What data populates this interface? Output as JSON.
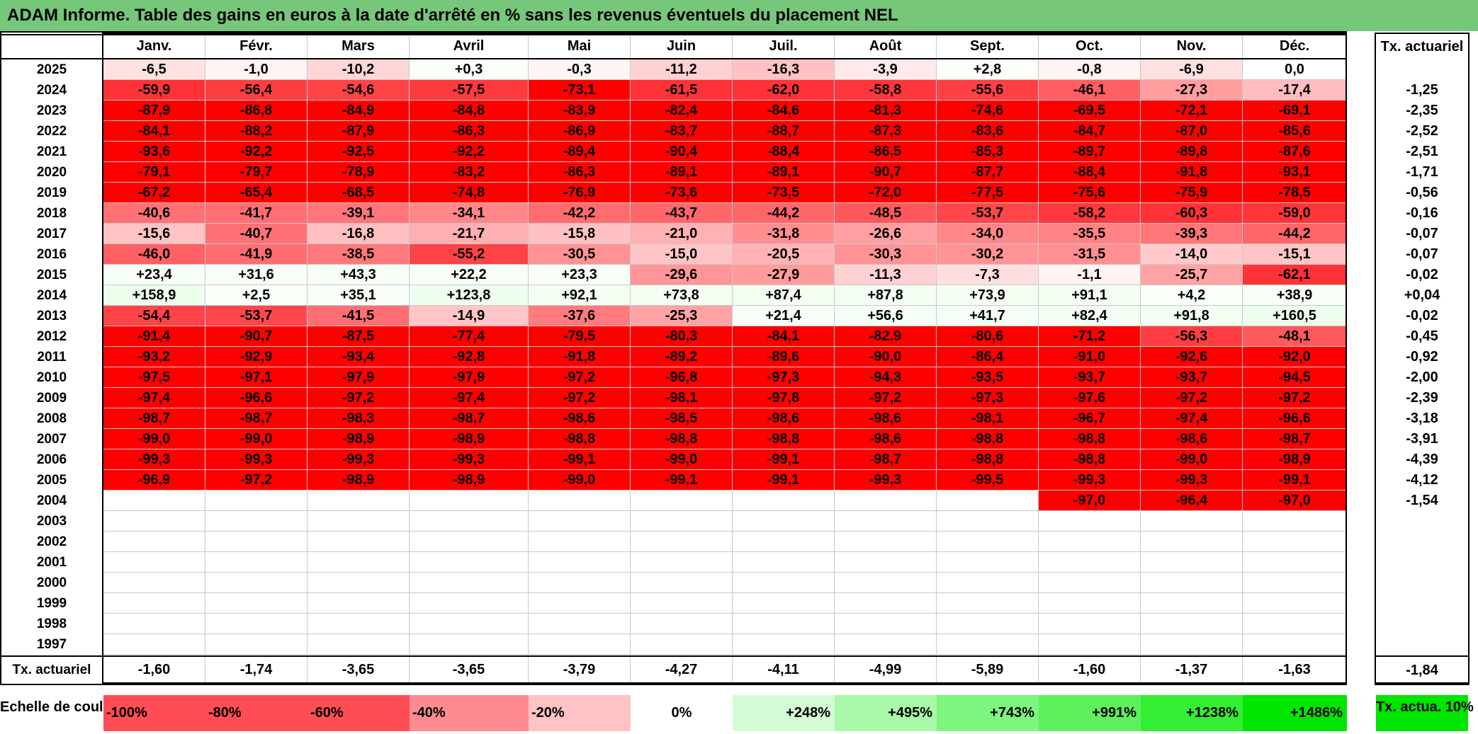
{
  "title": "ADAM Informe. Table des gains en euros à la date d'arrêté en % sans les revenus éventuels du placement NEL",
  "months": [
    "Janv.",
    "Févr.",
    "Mars",
    "Avril",
    "Mai",
    "Juin",
    "Juil.",
    "Août",
    "Sept.",
    "Oct.",
    "Nov.",
    "Déc."
  ],
  "annual_header": "Tx. actuariel",
  "rows": [
    {
      "year": "2025",
      "values": [
        "-6,5",
        "-1,0",
        "-10,2",
        "+0,3",
        "-0,3",
        "-11,2",
        "-16,3",
        "-3,9",
        "+2,8",
        "-0,8",
        "-6,9",
        "0,0"
      ],
      "annual": ""
    },
    {
      "year": "2024",
      "values": [
        "-59,9",
        "-56,4",
        "-54,6",
        "-57,5",
        "-73,1",
        "-61,5",
        "-62,0",
        "-58,8",
        "-55,6",
        "-46,1",
        "-27,3",
        "-17,4"
      ],
      "annual": "-1,25"
    },
    {
      "year": "2023",
      "values": [
        "-87,9",
        "-86,8",
        "-84,9",
        "-84,8",
        "-83,9",
        "-82,4",
        "-84,6",
        "-81,3",
        "-74,6",
        "-69,5",
        "-72,1",
        "-69,1"
      ],
      "annual": "-2,35"
    },
    {
      "year": "2022",
      "values": [
        "-84,1",
        "-88,2",
        "-87,9",
        "-86,3",
        "-86,9",
        "-83,7",
        "-88,7",
        "-87,3",
        "-83,6",
        "-84,7",
        "-87,0",
        "-85,6"
      ],
      "annual": "-2,52"
    },
    {
      "year": "2021",
      "values": [
        "-93,6",
        "-92,2",
        "-92,5",
        "-92,2",
        "-89,4",
        "-90,4",
        "-88,4",
        "-86,5",
        "-85,3",
        "-89,7",
        "-89,8",
        "-87,6"
      ],
      "annual": "-2,51"
    },
    {
      "year": "2020",
      "values": [
        "-79,1",
        "-79,7",
        "-78,9",
        "-83,2",
        "-86,3",
        "-89,1",
        "-89,1",
        "-90,7",
        "-87,7",
        "-88,4",
        "-91,8",
        "-93,1"
      ],
      "annual": "-1,71"
    },
    {
      "year": "2019",
      "values": [
        "-67,2",
        "-65,4",
        "-68,5",
        "-74,8",
        "-76,9",
        "-73,6",
        "-73,5",
        "-72,0",
        "-77,5",
        "-75,6",
        "-75,9",
        "-78,5"
      ],
      "annual": "-0,56"
    },
    {
      "year": "2018",
      "values": [
        "-40,6",
        "-41,7",
        "-39,1",
        "-34,1",
        "-42,2",
        "-43,7",
        "-44,2",
        "-48,5",
        "-53,7",
        "-58,2",
        "-60,3",
        "-59,0"
      ],
      "annual": "-0,16"
    },
    {
      "year": "2017",
      "values": [
        "-15,6",
        "-40,7",
        "-16,8",
        "-21,7",
        "-15,8",
        "-21,0",
        "-31,8",
        "-26,6",
        "-34,0",
        "-35,5",
        "-39,3",
        "-44,2"
      ],
      "annual": "-0,07"
    },
    {
      "year": "2016",
      "values": [
        "-46,0",
        "-41,9",
        "-38,5",
        "-55,2",
        "-30,5",
        "-15,0",
        "-20,5",
        "-30,3",
        "-30,2",
        "-31,5",
        "-14,0",
        "-15,1"
      ],
      "annual": "-0,07"
    },
    {
      "year": "2015",
      "values": [
        "+23,4",
        "+31,6",
        "+43,3",
        "+22,2",
        "+23,3",
        "-29,6",
        "-27,9",
        "-11,3",
        "-7,3",
        "-1,1",
        "-25,7",
        "-62,1"
      ],
      "annual": "-0,02"
    },
    {
      "year": "2014",
      "values": [
        "+158,9",
        "+2,5",
        "+35,1",
        "+123,8",
        "+92,1",
        "+73,8",
        "+87,4",
        "+87,8",
        "+73,9",
        "+91,1",
        "+4,2",
        "+38,9"
      ],
      "annual": "+0,04"
    },
    {
      "year": "2013",
      "values": [
        "-54,4",
        "-53,7",
        "-41,5",
        "-14,9",
        "-37,6",
        "-25,3",
        "+21,4",
        "+56,6",
        "+41,7",
        "+82,4",
        "+91,8",
        "+160,5"
      ],
      "annual": "-0,02"
    },
    {
      "year": "2012",
      "values": [
        "-91,4",
        "-90,7",
        "-87,5",
        "-77,4",
        "-79,5",
        "-80,3",
        "-84,1",
        "-82,9",
        "-80,6",
        "-71,2",
        "-56,3",
        "-48,1"
      ],
      "annual": "-0,45"
    },
    {
      "year": "2011",
      "values": [
        "-93,2",
        "-92,9",
        "-93,4",
        "-92,8",
        "-91,8",
        "-89,2",
        "-89,6",
        "-90,0",
        "-86,4",
        "-91,0",
        "-92,6",
        "-92,0"
      ],
      "annual": "-0,92"
    },
    {
      "year": "2010",
      "values": [
        "-97,5",
        "-97,1",
        "-97,9",
        "-97,9",
        "-97,2",
        "-96,8",
        "-97,3",
        "-94,3",
        "-93,5",
        "-93,7",
        "-93,7",
        "-94,5"
      ],
      "annual": "-2,00"
    },
    {
      "year": "2009",
      "values": [
        "-97,4",
        "-96,6",
        "-97,2",
        "-97,4",
        "-97,2",
        "-98,1",
        "-97,8",
        "-97,2",
        "-97,3",
        "-97,6",
        "-97,2",
        "-97,2"
      ],
      "annual": "-2,39"
    },
    {
      "year": "2008",
      "values": [
        "-98,7",
        "-98,7",
        "-98,3",
        "-98,7",
        "-98,6",
        "-98,5",
        "-98,6",
        "-98,6",
        "-98,1",
        "-96,7",
        "-97,4",
        "-96,6"
      ],
      "annual": "-3,18"
    },
    {
      "year": "2007",
      "values": [
        "-99,0",
        "-99,0",
        "-98,9",
        "-98,9",
        "-98,8",
        "-98,8",
        "-98,8",
        "-98,6",
        "-98,8",
        "-98,8",
        "-98,6",
        "-98,7"
      ],
      "annual": "-3,91"
    },
    {
      "year": "2006",
      "values": [
        "-99,3",
        "-99,3",
        "-99,3",
        "-99,3",
        "-99,1",
        "-99,0",
        "-99,1",
        "-98,7",
        "-98,8",
        "-98,8",
        "-99,0",
        "-98,9"
      ],
      "annual": "-4,39"
    },
    {
      "year": "2005",
      "values": [
        "-96,9",
        "-97,2",
        "-98,9",
        "-98,9",
        "-99,0",
        "-99,1",
        "-99,1",
        "-99,3",
        "-99,5",
        "-99,3",
        "-99,3",
        "-99,1"
      ],
      "annual": "-4,12"
    },
    {
      "year": "2004",
      "values": [
        "",
        "",
        "",
        "",
        "",
        "",
        "",
        "",
        "",
        "-97,0",
        "-96,4",
        "-97,0"
      ],
      "annual": "-1,54"
    },
    {
      "year": "2003",
      "values": [
        "",
        "",
        "",
        "",
        "",
        "",
        "",
        "",
        "",
        "",
        "",
        ""
      ],
      "annual": ""
    },
    {
      "year": "2002",
      "values": [
        "",
        "",
        "",
        "",
        "",
        "",
        "",
        "",
        "",
        "",
        "",
        ""
      ],
      "annual": ""
    },
    {
      "year": "2001",
      "values": [
        "",
        "",
        "",
        "",
        "",
        "",
        "",
        "",
        "",
        "",
        "",
        ""
      ],
      "annual": ""
    },
    {
      "year": "2000",
      "values": [
        "",
        "",
        "",
        "",
        "",
        "",
        "",
        "",
        "",
        "",
        "",
        ""
      ],
      "annual": ""
    },
    {
      "year": "1999",
      "values": [
        "",
        "",
        "",
        "",
        "",
        "",
        "",
        "",
        "",
        "",
        "",
        ""
      ],
      "annual": ""
    },
    {
      "year": "1998",
      "values": [
        "",
        "",
        "",
        "",
        "",
        "",
        "",
        "",
        "",
        "",
        "",
        ""
      ],
      "annual": ""
    },
    {
      "year": "1997",
      "values": [
        "",
        "",
        "",
        "",
        "",
        "",
        "",
        "",
        "",
        "",
        "",
        ""
      ],
      "annual": ""
    }
  ],
  "footer": {
    "label": "Tx. actuariel",
    "values": [
      "-1,60",
      "-1,74",
      "-3,65",
      "-3,65",
      "-3,79",
      "-4,27",
      "-4,11",
      "-4,99",
      "-5,89",
      "-1,60",
      "-1,37",
      "-1,63"
    ],
    "annual": "-1,84"
  },
  "scale": {
    "label": "Echelle de couleur",
    "items": [
      {
        "text": "-100%",
        "color": "#ff4d55"
      },
      {
        "text": "-80%",
        "color": "#ff4d55"
      },
      {
        "text": "-60%",
        "color": "#ff4d55"
      },
      {
        "text": "-40%",
        "color": "#ff8b90"
      },
      {
        "text": "-20%",
        "color": "#ffc3c6"
      },
      {
        "text": "0%",
        "color": "#ffffff"
      },
      {
        "text": "+248%",
        "color": "#d4fcd4"
      },
      {
        "text": "+495%",
        "color": "#a9f8a9"
      },
      {
        "text": "+743%",
        "color": "#7ef57e"
      },
      {
        "text": "+991%",
        "color": "#5cf15c"
      },
      {
        "text": "+1238%",
        "color": "#33ee33"
      },
      {
        "text": "+1486%",
        "color": "#00e600"
      }
    ],
    "annual": {
      "text": "Tx. actua. 10%",
      "color": "#00e600"
    }
  }
}
